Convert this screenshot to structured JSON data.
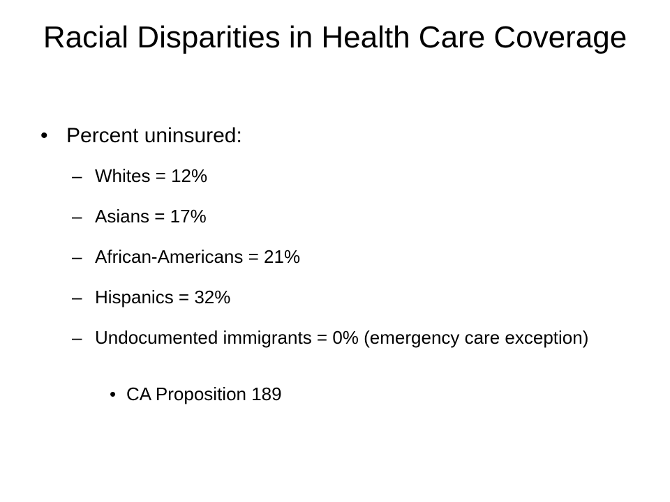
{
  "slide": {
    "title": "Racial Disparities in Health Care Coverage",
    "bullet": {
      "glyph": "•",
      "text": "Percent uninsured:"
    },
    "sub_bullets": [
      {
        "glyph": "–",
        "text": "Whites = 12%"
      },
      {
        "glyph": "–",
        "text": "Asians = 17%"
      },
      {
        "glyph": "–",
        "text": "African-Americans = 21%"
      },
      {
        "glyph": "–",
        "text": "Hispanics = 32%"
      },
      {
        "glyph": "–",
        "text": "Undocumented immigrants = 0% (emergency care exception)"
      }
    ],
    "sub_sub_bullet": {
      "glyph": "•",
      "text": "CA Proposition 189"
    }
  }
}
